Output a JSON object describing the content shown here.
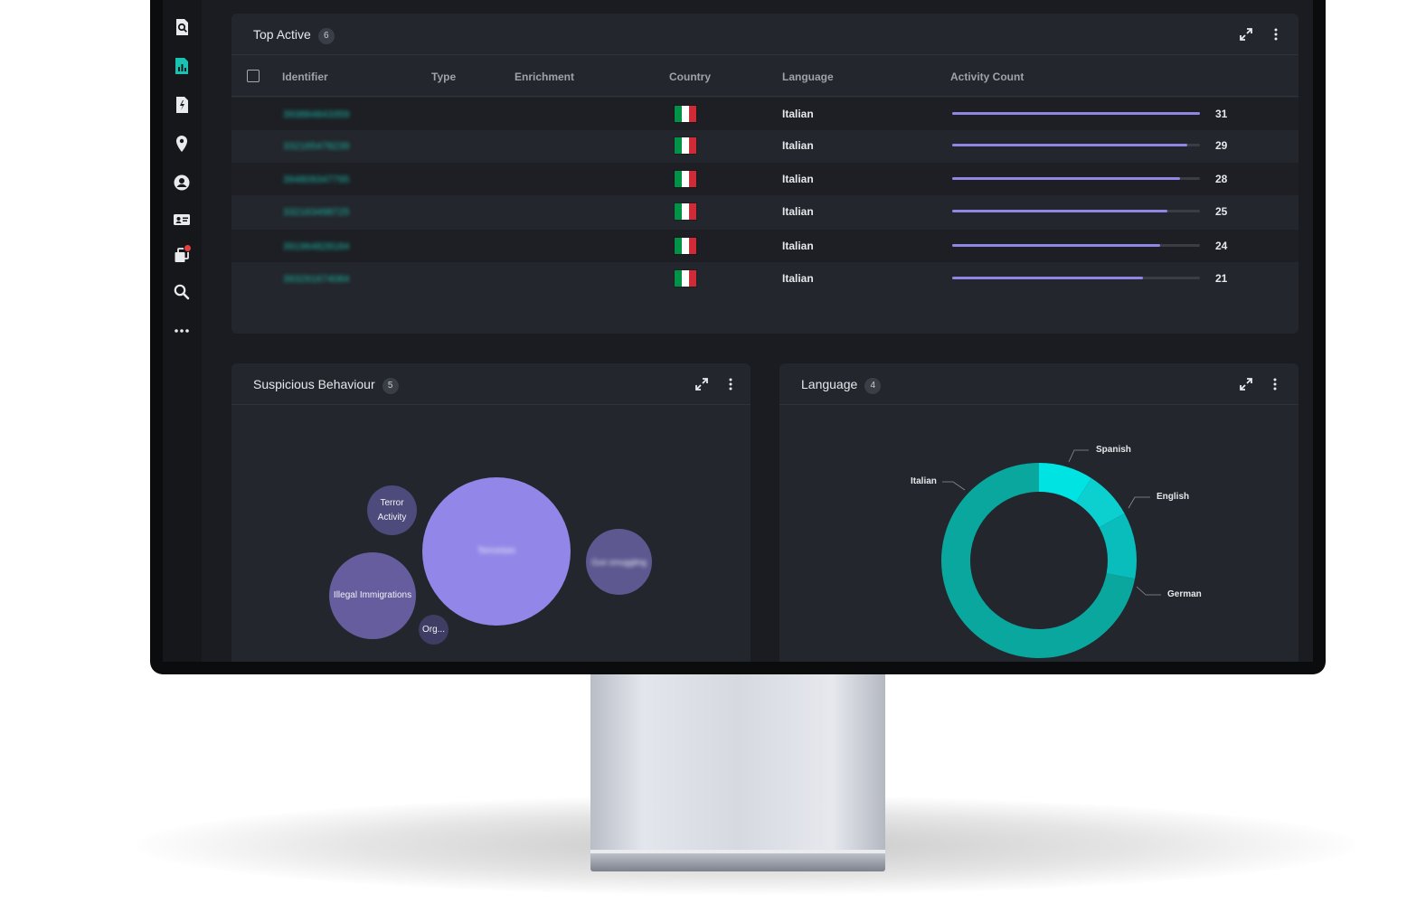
{
  "sidebar": {
    "icons": [
      "search-report-icon",
      "analytics-icon",
      "document-icon",
      "location-pin-icon",
      "user-icon",
      "id-card-icon",
      "copy-icon",
      "search-icon",
      "more-icon"
    ]
  },
  "top_active": {
    "title": "Top Active",
    "count": "6",
    "columns": {
      "identifier": "Identifier",
      "type": "Type",
      "enrichment": "Enrichment",
      "country": "Country",
      "language": "Language",
      "activity_count": "Activity Count"
    },
    "rows": [
      {
        "identifier": "393884843359",
        "language": "Italian",
        "count": "31",
        "fraction": 1.0
      },
      {
        "identifier": "332165478239",
        "language": "Italian",
        "count": "29",
        "fraction": 0.95
      },
      {
        "identifier": "394809347795",
        "language": "Italian",
        "count": "28",
        "fraction": 0.92
      },
      {
        "identifier": "332163498725",
        "language": "Italian",
        "count": "25",
        "fraction": 0.87
      },
      {
        "identifier": "391964828184",
        "language": "Italian",
        "count": "24",
        "fraction": 0.84
      },
      {
        "identifier": "393291674084",
        "language": "Italian",
        "count": "21",
        "fraction": 0.77
      }
    ],
    "flag_colors": [
      "#009246",
      "#ffffff",
      "#ce2b37"
    ],
    "bar_color": "#8f87e3"
  },
  "suspicious": {
    "title": "Suspicious Behaviour",
    "count": "5",
    "bubbles": {
      "terror": "Terror Activity",
      "illegal": "Illegal Immigrations",
      "org": "Org...",
      "main": "Terrorism",
      "right": "Gun smuggling"
    }
  },
  "language": {
    "title": "Language",
    "count": "4",
    "labels": {
      "italian": "Italian",
      "spanish": "Spanish",
      "english": "English",
      "german": "German"
    }
  },
  "chart_data": [
    {
      "type": "pie",
      "categories": [
        "Italian",
        "Spanish",
        "English",
        "German"
      ],
      "values": [
        72,
        9,
        8,
        11
      ],
      "colors": [
        "#0aa79e",
        "#00e3e3",
        "#0ccfcf",
        "#08bdbb"
      ],
      "legend": "callout-labels"
    }
  ]
}
